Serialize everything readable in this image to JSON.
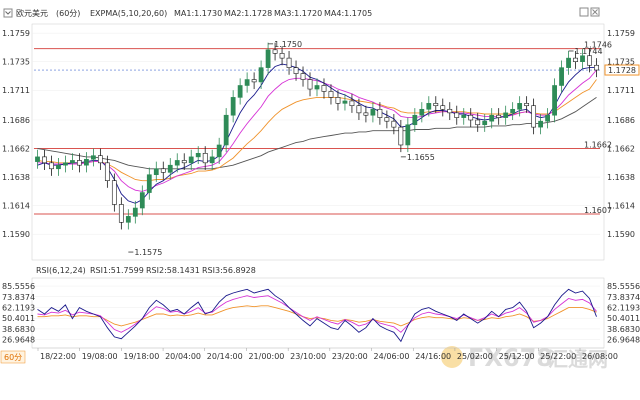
{
  "header": {
    "symbol": "欧元美元",
    "period": "(60分)",
    "indicator": "EXPMA(5,10,20,60)",
    "ma1": "MA1:1.1730",
    "ma2": "MA2:1.1728",
    "ma3": "MA3:1.1720",
    "ma4": "MA4:1.1705"
  },
  "rsi_header": {
    "indicator": "RSI(6,12,24)",
    "rsi1": "RSI1:51.7599",
    "rsi2": "RSI2:58.1431",
    "rsi3": "RSI3:56.8928"
  },
  "period_badge": "60分",
  "watermark": {
    "brand": "FX678",
    "cn": "汇通网"
  },
  "colors": {
    "up": "#2e8b57",
    "down": "#1a1a1a",
    "hline": "#d9534f",
    "ma1": "#1a1a8c",
    "ma2": "#d633d6",
    "ma3": "#f0932b",
    "ma4": "#555555",
    "rsi1": "#1a1a8c",
    "rsi2": "#d633d6",
    "rsi3": "#f0932b",
    "current": "#f0932b"
  },
  "chart_data": {
    "type": "candlestick",
    "price_axis": {
      "ticks": [
        "1.1759",
        "1.1735",
        "1.1711",
        "1.1686",
        "1.1662",
        "1.1638",
        "1.1614",
        "1.1590"
      ],
      "range": [
        1.157,
        1.1765
      ]
    },
    "rsi_axis": {
      "ticks": [
        "85.5556",
        "73.8374",
        "62.1193",
        "50.4011",
        "38.6830",
        "26.9648"
      ],
      "range": [
        20,
        90
      ]
    },
    "time_ticks": [
      "18/22:00",
      "19/08:00",
      "19/18:00",
      "20/04:00",
      "20/14:00",
      "21/00:00",
      "23/10:00",
      "23/20:00",
      "24/06:00",
      "24/16:00",
      "25/02:00",
      "25/12:00",
      "25/22:00",
      "26/08:00"
    ],
    "horizontal_lines": [
      {
        "value": 1.1746,
        "label": "1.1746"
      },
      {
        "value": 1.1662,
        "label": "1.1662"
      },
      {
        "value": 1.1607,
        "label": "1.1607"
      }
    ],
    "current_price": {
      "value": 1.1728,
      "label": "1.1728"
    },
    "annotations": [
      {
        "index": 33,
        "value": 1.175,
        "label": "1.1750"
      },
      {
        "index": 13,
        "value": 1.1575,
        "label": "1.1575"
      },
      {
        "index": 52,
        "value": 1.1655,
        "label": "1.1655"
      },
      {
        "index": 76,
        "value": 1.1744,
        "label": "1.1744"
      }
    ],
    "close": [
      1.1655,
      1.165,
      1.1645,
      1.1648,
      1.165,
      1.1652,
      1.1648,
      1.1653,
      1.1656,
      1.165,
      1.1635,
      1.1615,
      1.16,
      1.1605,
      1.1612,
      1.1625,
      1.164,
      1.1645,
      1.1642,
      1.1648,
      1.1652,
      1.165,
      1.1655,
      1.1658,
      1.165,
      1.1655,
      1.1665,
      1.169,
      1.1705,
      1.1715,
      1.172,
      1.1718,
      1.173,
      1.1745,
      1.1742,
      1.1738,
      1.173,
      1.1725,
      1.172,
      1.1712,
      1.1715,
      1.171,
      1.1705,
      1.17,
      1.1702,
      1.1698,
      1.1692,
      1.169,
      1.1695,
      1.1688,
      1.1685,
      1.168,
      1.1665,
      1.1682,
      1.169,
      1.1695,
      1.17,
      1.1698,
      1.1695,
      1.1692,
      1.1688,
      1.169,
      1.1686,
      1.1682,
      1.1685,
      1.169,
      1.1688,
      1.1692,
      1.1695,
      1.17,
      1.1698,
      1.168,
      1.1685,
      1.169,
      1.1715,
      1.173,
      1.1738,
      1.1735,
      1.174,
      1.1732,
      1.1728
    ],
    "ma1": [
      1.1648,
      1.165,
      1.1648,
      1.1648,
      1.1649,
      1.165,
      1.165,
      1.1651,
      1.1652,
      1.1652,
      1.1646,
      1.1636,
      1.1624,
      1.1618,
      1.1616,
      1.1619,
      1.1626,
      1.1632,
      1.1635,
      1.164,
      1.1644,
      1.1646,
      1.1649,
      1.1652,
      1.1651,
      1.1652,
      1.1656,
      1.1668,
      1.168,
      1.1692,
      1.1701,
      1.1707,
      1.1715,
      1.1725,
      1.1731,
      1.1733,
      1.1732,
      1.173,
      1.1727,
      1.1722,
      1.172,
      1.1717,
      1.1713,
      1.1709,
      1.1707,
      1.1704,
      1.17,
      1.1697,
      1.1696,
      1.1693,
      1.169,
      1.1687,
      1.168,
      1.1681,
      1.1684,
      1.1688,
      1.1692,
      1.1694,
      1.1694,
      1.1693,
      1.1691,
      1.1691,
      1.1689,
      1.1687,
      1.1686,
      1.1687,
      1.1688,
      1.1689,
      1.1691,
      1.1694,
      1.1695,
      1.169,
      1.1688,
      1.1689,
      1.1698,
      1.1709,
      1.1718,
      1.1724,
      1.1729,
      1.173,
      1.173
    ],
    "ma2": [
      1.165,
      1.165,
      1.1649,
      1.1649,
      1.1649,
      1.1649,
      1.1649,
      1.165,
      1.1651,
      1.1651,
      1.1648,
      1.1643,
      1.1635,
      1.163,
      1.1627,
      1.1626,
      1.1628,
      1.1631,
      1.1633,
      1.1636,
      1.1639,
      1.1641,
      1.1643,
      1.1646,
      1.1647,
      1.1648,
      1.1651,
      1.1658,
      1.1666,
      1.1675,
      1.1683,
      1.169,
      1.1697,
      1.1706,
      1.1712,
      1.1717,
      1.172,
      1.1721,
      1.1721,
      1.172,
      1.1719,
      1.1717,
      1.1715,
      1.1712,
      1.171,
      1.1708,
      1.1705,
      1.1703,
      1.1701,
      1.1698,
      1.1696,
      1.1694,
      1.1689,
      1.1688,
      1.1688,
      1.1689,
      1.1691,
      1.1692,
      1.1693,
      1.1693,
      1.1692,
      1.1692,
      1.1691,
      1.169,
      1.1689,
      1.1689,
      1.1689,
      1.1689,
      1.169,
      1.1692,
      1.1693,
      1.1691,
      1.169,
      1.169,
      1.1694,
      1.17,
      1.1707,
      1.1712,
      1.1717,
      1.1721,
      1.1728
    ],
    "ma3": [
      1.1652,
      1.1651,
      1.1651,
      1.165,
      1.165,
      1.165,
      1.165,
      1.165,
      1.1651,
      1.1651,
      1.1649,
      1.1646,
      1.1642,
      1.1639,
      1.1636,
      1.1635,
      1.1635,
      1.1636,
      1.1636,
      1.1637,
      1.1639,
      1.164,
      1.1641,
      1.1643,
      1.1643,
      1.1644,
      1.1646,
      1.165,
      1.1654,
      1.166,
      1.1666,
      1.1671,
      1.1677,
      1.1684,
      1.169,
      1.1695,
      1.1698,
      1.1701,
      1.1703,
      1.1704,
      1.1705,
      1.1705,
      1.1705,
      1.1705,
      1.1704,
      1.1703,
      1.1702,
      1.1701,
      1.17,
      1.1699,
      1.1697,
      1.1696,
      1.1693,
      1.1692,
      1.1692,
      1.1692,
      1.1693,
      1.1693,
      1.1693,
      1.1693,
      1.1693,
      1.1693,
      1.1692,
      1.1692,
      1.1691,
      1.1691,
      1.1691,
      1.1691,
      1.1691,
      1.1692,
      1.1693,
      1.1692,
      1.1691,
      1.1691,
      1.1693,
      1.1697,
      1.1701,
      1.1705,
      1.1709,
      1.1712,
      1.172
    ],
    "ma4": [
      1.1662,
      1.1661,
      1.166,
      1.1659,
      1.1658,
      1.1657,
      1.1656,
      1.1655,
      1.1655,
      1.1654,
      1.1653,
      1.1652,
      1.165,
      1.1648,
      1.1647,
      1.1646,
      1.1645,
      1.1645,
      1.1645,
      1.1645,
      1.1645,
      1.1645,
      1.1645,
      1.1645,
      1.1645,
      1.1645,
      1.1646,
      1.1647,
      1.1648,
      1.165,
      1.1652,
      1.1654,
      1.1656,
      1.1659,
      1.1661,
      1.1663,
      1.1665,
      1.1667,
      1.1668,
      1.167,
      1.1671,
      1.1672,
      1.1673,
      1.1674,
      1.1675,
      1.1675,
      1.1676,
      1.1676,
      1.1677,
      1.1677,
      1.1677,
      1.1677,
      1.1677,
      1.1677,
      1.1678,
      1.1678,
      1.1678,
      1.1679,
      1.1679,
      1.1679,
      1.168,
      1.168,
      1.168,
      1.168,
      1.168,
      1.1681,
      1.1681,
      1.1681,
      1.1682,
      1.1682,
      1.1683,
      1.1683,
      1.1683,
      1.1684,
      1.1685,
      1.1687,
      1.169,
      1.1693,
      1.1697,
      1.1701,
      1.1705
    ],
    "rsi1": [
      60,
      55,
      62,
      58,
      65,
      50,
      62,
      58,
      55,
      52,
      40,
      30,
      28,
      35,
      42,
      50,
      62,
      70,
      65,
      58,
      60,
      55,
      62,
      68,
      55,
      58,
      68,
      75,
      78,
      80,
      82,
      78,
      80,
      82,
      75,
      70,
      62,
      55,
      48,
      42,
      50,
      45,
      40,
      38,
      48,
      42,
      35,
      40,
      50,
      42,
      38,
      35,
      25,
      42,
      55,
      60,
      62,
      58,
      55,
      52,
      48,
      55,
      50,
      45,
      50,
      58,
      52,
      60,
      62,
      68,
      58,
      40,
      45,
      52,
      65,
      75,
      82,
      78,
      80,
      72,
      52
    ],
    "rsi2": [
      55,
      54,
      57,
      56,
      59,
      54,
      57,
      56,
      55,
      53,
      46,
      38,
      35,
      39,
      44,
      50,
      57,
      63,
      61,
      57,
      58,
      55,
      58,
      62,
      56,
      57,
      63,
      68,
      71,
      73,
      75,
      73,
      74,
      75,
      71,
      67,
      62,
      57,
      52,
      48,
      52,
      49,
      46,
      44,
      49,
      46,
      42,
      44,
      49,
      45,
      43,
      41,
      35,
      43,
      51,
      55,
      57,
      55,
      54,
      52,
      50,
      54,
      51,
      48,
      51,
      55,
      52,
      56,
      58,
      62,
      56,
      46,
      48,
      52,
      60,
      66,
      72,
      70,
      71,
      67,
      58
    ],
    "rsi3": [
      52,
      52,
      53,
      53,
      54,
      52,
      53,
      53,
      52,
      52,
      48,
      44,
      42,
      44,
      46,
      49,
      52,
      55,
      55,
      53,
      54,
      53,
      54,
      56,
      54,
      54,
      57,
      60,
      62,
      63,
      64,
      63,
      64,
      64,
      62,
      60,
      58,
      55,
      52,
      50,
      51,
      50,
      48,
      47,
      49,
      48,
      46,
      47,
      49,
      47,
      46,
      45,
      42,
      45,
      49,
      51,
      52,
      51,
      51,
      50,
      49,
      51,
      50,
      48,
      49,
      51,
      50,
      52,
      53,
      55,
      52,
      47,
      48,
      50,
      54,
      58,
      62,
      62,
      62,
      60,
      57
    ]
  }
}
